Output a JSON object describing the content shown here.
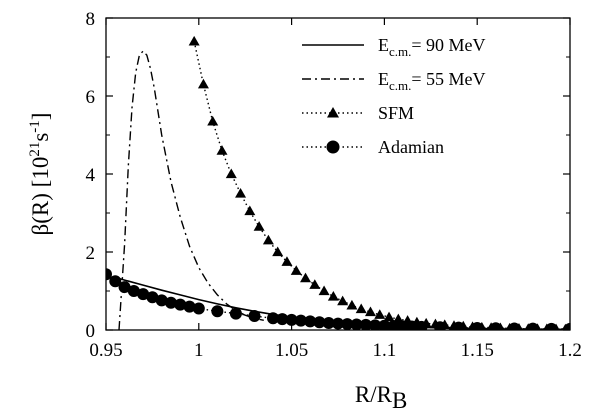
{
  "chart_data": {
    "type": "line",
    "xlabel": "R/R",
    "xlabel_sub": "B",
    "ylabel": "β(R)  [10",
    "ylabel_sup": "21",
    "ylabel_unit": "s",
    "ylabel_unit_sup": "-1",
    "ylabel_close": "]",
    "xlim": [
      0.95,
      1.2
    ],
    "ylim": [
      0,
      8
    ],
    "xticks": [
      "0.95",
      "1",
      "1.05",
      "1.1",
      "1.15",
      "1.2"
    ],
    "xtick_values": [
      0.95,
      1.0,
      1.05,
      1.1,
      1.15,
      1.2
    ],
    "yticks": [
      "0",
      "2",
      "4",
      "6",
      "8"
    ],
    "ytick_values": [
      0,
      2,
      4,
      6,
      8
    ],
    "grid": false,
    "legend_position": "top-right",
    "series": [
      {
        "name": "E",
        "name_sub": "c.m.",
        "name_rest": "= 90 MeV",
        "style": "solid",
        "marker": "none",
        "x": [
          0.955,
          0.96,
          0.97,
          0.98,
          0.99,
          1.0,
          1.01,
          1.02,
          1.03,
          1.04,
          1.05,
          1.06,
          1.07,
          1.08,
          1.09,
          1.1,
          1.11,
          1.12,
          1.13,
          1.14,
          1.15,
          1.16,
          1.17,
          1.18,
          1.19,
          1.2
        ],
        "y": [
          1.35,
          1.28,
          1.15,
          1.02,
          0.9,
          0.78,
          0.67,
          0.57,
          0.48,
          0.4,
          0.33,
          0.27,
          0.22,
          0.18,
          0.14,
          0.11,
          0.09,
          0.07,
          0.055,
          0.045,
          0.035,
          0.028,
          0.022,
          0.018,
          0.014,
          0.011
        ]
      },
      {
        "name": "E",
        "name_sub": "c.m.",
        "name_rest": "= 55 MeV",
        "style": "dashdot",
        "marker": "none",
        "x": [
          0.957,
          0.96,
          0.962,
          0.964,
          0.966,
          0.968,
          0.97,
          0.972,
          0.974,
          0.976,
          0.978,
          0.98,
          0.985,
          0.99,
          0.995,
          1.0,
          1.005,
          1.01,
          1.015,
          1.02,
          1.025,
          1.03,
          1.035
        ],
        "y": [
          0.0,
          2.2,
          4.2,
          5.7,
          6.6,
          7.05,
          7.15,
          7.05,
          6.7,
          6.2,
          5.6,
          5.0,
          3.8,
          2.9,
          2.15,
          1.6,
          1.2,
          0.9,
          0.67,
          0.5,
          0.38,
          0.3,
          0.25
        ]
      },
      {
        "name": "SFM",
        "style": "dotted",
        "marker": "triangle",
        "x": [
          0.9975,
          1.0025,
          1.0075,
          1.0125,
          1.0175,
          1.0225,
          1.0275,
          1.0325,
          1.0375,
          1.0425,
          1.0475,
          1.0525,
          1.0575,
          1.0625,
          1.0675,
          1.0725,
          1.0775,
          1.0825,
          1.0875,
          1.0925,
          1.0975,
          1.1025,
          1.1075,
          1.1125,
          1.1175,
          1.1225,
          1.1275,
          1.1325,
          1.1375,
          1.1425,
          1.1475,
          1.1525,
          1.1575,
          1.1625,
          1.1675,
          1.1725,
          1.1775,
          1.1825,
          1.1875,
          1.1925,
          1.1975
        ],
        "y": [
          7.4,
          6.3,
          5.35,
          4.6,
          4.0,
          3.5,
          3.05,
          2.65,
          2.3,
          2.0,
          1.75,
          1.52,
          1.33,
          1.16,
          1.0,
          0.86,
          0.74,
          0.63,
          0.54,
          0.46,
          0.39,
          0.33,
          0.28,
          0.24,
          0.2,
          0.17,
          0.15,
          0.13,
          0.11,
          0.095,
          0.08,
          0.068,
          0.058,
          0.05,
          0.043,
          0.037,
          0.032,
          0.028,
          0.025,
          0.022,
          0.02
        ]
      },
      {
        "name": "Adamian",
        "style": "dotted",
        "marker": "circle",
        "x": [
          0.95,
          0.955,
          0.96,
          0.965,
          0.97,
          0.975,
          0.98,
          0.985,
          0.99,
          0.995,
          1.0,
          1.01,
          1.02,
          1.03,
          1.04,
          1.045,
          1.05,
          1.055,
          1.06,
          1.065,
          1.07,
          1.075,
          1.08,
          1.085,
          1.09,
          1.095,
          1.1,
          1.105,
          1.11,
          1.115,
          1.12,
          1.13,
          1.14,
          1.15,
          1.16,
          1.17,
          1.18,
          1.19,
          1.2
        ],
        "y": [
          1.43,
          1.25,
          1.1,
          1.0,
          0.92,
          0.84,
          0.76,
          0.7,
          0.65,
          0.6,
          0.55,
          0.48,
          0.42,
          0.36,
          0.3,
          0.28,
          0.26,
          0.24,
          0.22,
          0.2,
          0.18,
          0.165,
          0.15,
          0.14,
          0.13,
          0.12,
          0.11,
          0.1,
          0.09,
          0.085,
          0.08,
          0.07,
          0.06,
          0.05,
          0.045,
          0.04,
          0.035,
          0.03,
          0.03
        ]
      }
    ]
  }
}
